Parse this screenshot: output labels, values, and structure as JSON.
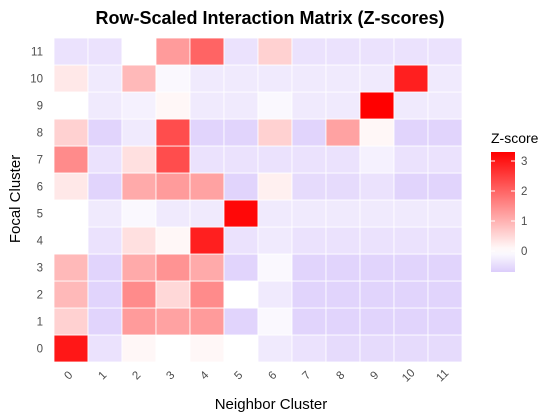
{
  "chart_data": {
    "type": "heatmap",
    "title": "Row-Scaled Interaction Matrix (Z-scores)",
    "xlabel": "Neighbor Cluster",
    "ylabel": "Focal Cluster",
    "x_categories": [
      "0",
      "1",
      "2",
      "3",
      "4",
      "5",
      "6",
      "7",
      "8",
      "9",
      "10",
      "11"
    ],
    "y_categories": [
      "0",
      "1",
      "2",
      "3",
      "4",
      "5",
      "6",
      "7",
      "8",
      "9",
      "10",
      "11"
    ],
    "values": [
      [
        3.0,
        -0.4,
        0.1,
        0.0,
        0.1,
        0.0,
        -0.3,
        -0.4,
        -0.5,
        -0.5,
        -0.5,
        -0.5
      ],
      [
        0.6,
        -0.6,
        1.3,
        1.2,
        1.3,
        -0.6,
        -0.1,
        -0.6,
        -0.6,
        -0.6,
        -0.6,
        -0.6
      ],
      [
        0.9,
        -0.6,
        1.5,
        0.5,
        1.5,
        0.0,
        -0.3,
        -0.6,
        -0.6,
        -0.6,
        -0.6,
        -0.6
      ],
      [
        0.9,
        -0.6,
        1.1,
        1.4,
        1.1,
        -0.6,
        -0.1,
        -0.6,
        -0.6,
        -0.6,
        -0.6,
        -0.6
      ],
      [
        0.0,
        -0.4,
        0.4,
        0.1,
        2.9,
        -0.4,
        -0.3,
        -0.4,
        -0.4,
        -0.4,
        -0.4,
        -0.4
      ],
      [
        0.0,
        -0.3,
        -0.1,
        -0.3,
        -0.3,
        3.2,
        -0.3,
        -0.3,
        -0.3,
        -0.3,
        -0.3,
        -0.3
      ],
      [
        0.3,
        -0.6,
        1.1,
        1.3,
        1.2,
        -0.6,
        0.2,
        -0.5,
        -0.5,
        -0.4,
        -0.6,
        -0.6
      ],
      [
        1.5,
        -0.4,
        0.4,
        2.3,
        -0.4,
        -0.4,
        -0.4,
        -0.4,
        -0.4,
        -0.2,
        -0.4,
        -0.4
      ],
      [
        0.6,
        -0.6,
        -0.3,
        2.3,
        -0.6,
        -0.6,
        0.6,
        -0.6,
        1.2,
        0.1,
        -0.6,
        -0.6
      ],
      [
        0.0,
        -0.3,
        -0.2,
        0.1,
        -0.3,
        -0.3,
        -0.1,
        -0.3,
        -0.3,
        3.3,
        -0.3,
        -0.3
      ],
      [
        0.3,
        -0.3,
        0.9,
        -0.1,
        -0.3,
        -0.3,
        -0.3,
        -0.3,
        -0.3,
        -0.3,
        2.9,
        -0.3
      ],
      [
        -0.4,
        -0.4,
        0.0,
        1.3,
        2.0,
        -0.4,
        0.6,
        -0.4,
        -0.4,
        -0.4,
        -0.4,
        -0.4
      ]
    ],
    "color_scale": {
      "low": "#dccdfb",
      "mid": "#ffffff",
      "high": "#ff0000",
      "min": -0.7,
      "mid_value": 0,
      "max": 3.3
    },
    "legend": {
      "title": "Z-score",
      "ticks": [
        0,
        1,
        2,
        3
      ],
      "position": "right"
    },
    "grid": true
  }
}
